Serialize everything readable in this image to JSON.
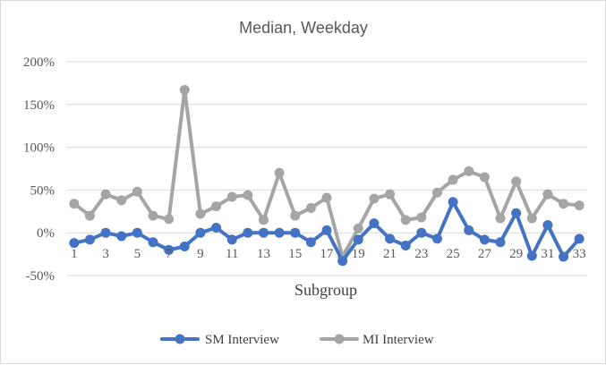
{
  "chart_data": {
    "type": "line",
    "title": "Median, Weekday",
    "xlabel": "Subgroup",
    "ylabel": "",
    "ylim": [
      -0.5,
      2.0
    ],
    "ytick_values": [
      -0.5,
      0,
      0.5,
      1.0,
      1.5,
      2.0
    ],
    "ytick_labels": [
      "-50%",
      "0%",
      "50%",
      "100%",
      "150%",
      "200%"
    ],
    "x": [
      1,
      2,
      3,
      4,
      5,
      6,
      7,
      8,
      9,
      10,
      11,
      12,
      13,
      14,
      15,
      16,
      17,
      18,
      19,
      20,
      21,
      22,
      23,
      24,
      25,
      26,
      27,
      28,
      29,
      30,
      31,
      32,
      33
    ],
    "xtick_labels": [
      "1",
      "3",
      "5",
      "7",
      "9",
      "11",
      "13",
      "15",
      "17",
      "19",
      "21",
      "23",
      "25",
      "27",
      "29",
      "31",
      "33"
    ],
    "xtick_positions": [
      1,
      3,
      5,
      7,
      9,
      11,
      13,
      15,
      17,
      19,
      21,
      23,
      25,
      27,
      29,
      31,
      33
    ],
    "grid": true,
    "legend_position": "bottom",
    "series": [
      {
        "name": "SM Interview",
        "color": "#4472c4",
        "values": [
          -0.12,
          -0.08,
          0.0,
          -0.04,
          0.0,
          -0.11,
          -0.2,
          -0.16,
          0.0,
          0.06,
          -0.08,
          0.0,
          0.0,
          0.0,
          0.0,
          -0.11,
          0.03,
          -0.33,
          -0.08,
          0.11,
          -0.07,
          -0.15,
          0.0,
          -0.07,
          0.36,
          0.03,
          -0.08,
          -0.11,
          0.23,
          -0.27,
          0.09,
          -0.28,
          -0.07
        ]
      },
      {
        "name": "MI Interview",
        "color": "#a5a5a5",
        "values": [
          0.34,
          0.2,
          0.45,
          0.38,
          0.48,
          0.2,
          0.16,
          1.67,
          0.22,
          0.31,
          0.42,
          0.44,
          0.15,
          0.7,
          0.2,
          0.29,
          0.41,
          -0.28,
          0.05,
          0.4,
          0.45,
          0.15,
          0.18,
          0.47,
          0.62,
          0.72,
          0.65,
          0.17,
          0.6,
          0.17,
          0.45,
          0.34,
          0.32
        ]
      }
    ]
  }
}
